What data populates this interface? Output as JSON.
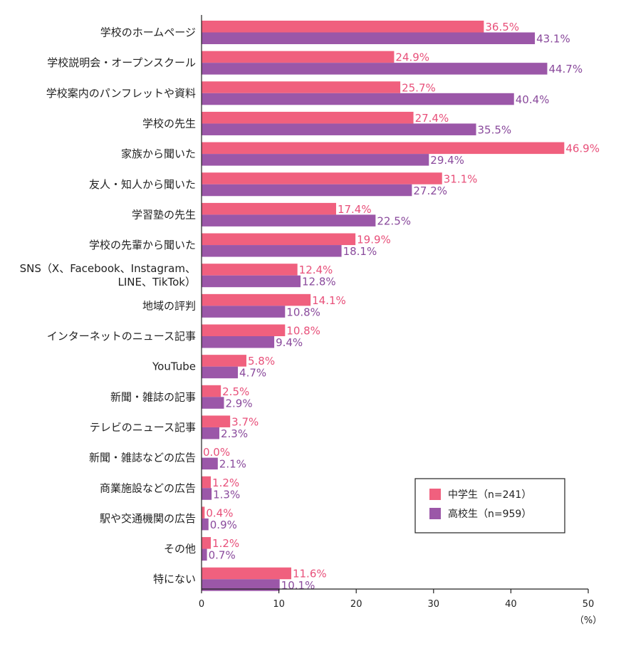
{
  "chart_data": {
    "type": "bar",
    "orientation": "horizontal",
    "categories": [
      [
        "学校のホームページ"
      ],
      [
        "学校説明会・オープンスクール"
      ],
      [
        "学校案内のパンフレットや資料"
      ],
      [
        "学校の先生"
      ],
      [
        "家族から聞いた"
      ],
      [
        "友人・知人から聞いた"
      ],
      [
        "学習塾の先生"
      ],
      [
        "学校の先輩から聞いた"
      ],
      [
        "SNS（X、Facebook、Instagram、",
        "LINE、TikTok）"
      ],
      [
        "地域の評判"
      ],
      [
        "インターネットのニュース記事"
      ],
      [
        "YouTube"
      ],
      [
        "新聞・雑誌の記事"
      ],
      [
        "テレビのニュース記事"
      ],
      [
        "新聞・雑誌などの広告"
      ],
      [
        "商業施設などの広告"
      ],
      [
        "駅や交通機関の広告"
      ],
      [
        "その他"
      ],
      [
        "特にない"
      ]
    ],
    "series": [
      {
        "name": "中学生（n=241）",
        "color": "#f0607e",
        "label_color": "#e8507a",
        "values": [
          36.5,
          24.9,
          25.7,
          27.4,
          46.9,
          31.1,
          17.4,
          19.9,
          12.4,
          14.1,
          10.8,
          5.8,
          2.5,
          3.7,
          0.0,
          1.2,
          0.4,
          1.2,
          11.6
        ]
      },
      {
        "name": "高校生（n=959）",
        "color": "#9b57a8",
        "label_color": "#8a4a9c",
        "values": [
          43.1,
          44.7,
          40.4,
          35.5,
          29.4,
          27.2,
          22.5,
          18.1,
          12.8,
          10.8,
          9.4,
          4.7,
          2.9,
          2.3,
          2.1,
          1.3,
          0.9,
          0.7,
          10.1
        ]
      }
    ],
    "xlim": [
      0,
      50
    ],
    "xticks": [
      0,
      10,
      20,
      30,
      40,
      50
    ],
    "xunit": "（%）",
    "value_suffix": "%",
    "grid": false,
    "legend_position": "bottom-right"
  }
}
